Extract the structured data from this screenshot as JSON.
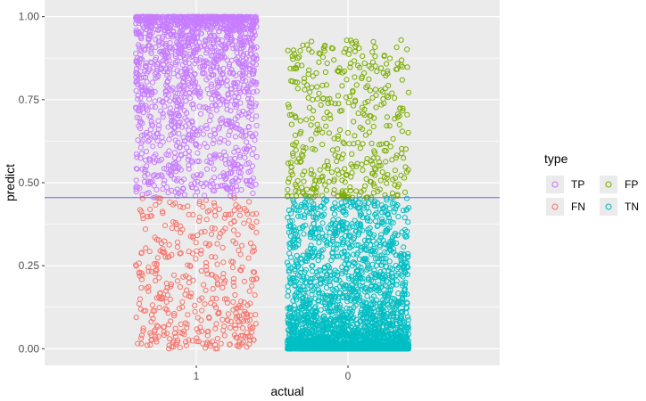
{
  "chart_data": {
    "type": "scatter",
    "title": "",
    "xlabel": "actual",
    "ylabel": "predict",
    "categories": [
      "1",
      "0"
    ],
    "ylim": [
      -0.05,
      1.05
    ],
    "y_ticks": [
      0.0,
      0.25,
      0.5,
      0.75,
      1.0
    ],
    "y_tick_labels": [
      "0.00",
      "0.25",
      "0.50",
      "0.75",
      "1.00"
    ],
    "grid": true,
    "jitter_width": 0.4,
    "threshold": 0.455,
    "threshold_color": "#6666ee",
    "legend": {
      "title": "type",
      "position": "right",
      "entries": [
        {
          "label": "TP",
          "color": "#C77CFF"
        },
        {
          "label": "FP",
          "color": "#7CAE00"
        },
        {
          "label": "FN",
          "color": "#F8766D"
        },
        {
          "label": "TN",
          "color": "#00BFC4"
        }
      ]
    },
    "series": [
      {
        "name": "TP",
        "actual": "1",
        "color": "#C77CFF",
        "y_range": [
          0.455,
          1.0
        ],
        "skew": 0.35,
        "count": 1500
      },
      {
        "name": "FN",
        "actual": "1",
        "color": "#F8766D",
        "y_range": [
          0.0,
          0.455
        ],
        "skew": 1.2,
        "count": 420
      },
      {
        "name": "FP",
        "actual": "0",
        "color": "#7CAE00",
        "y_range": [
          0.455,
          0.93
        ],
        "skew": 1.3,
        "count": 420
      },
      {
        "name": "TN",
        "actual": "0",
        "color": "#00BFC4",
        "y_range": [
          0.0,
          0.455
        ],
        "skew": 3.2,
        "count": 2600
      }
    ]
  }
}
